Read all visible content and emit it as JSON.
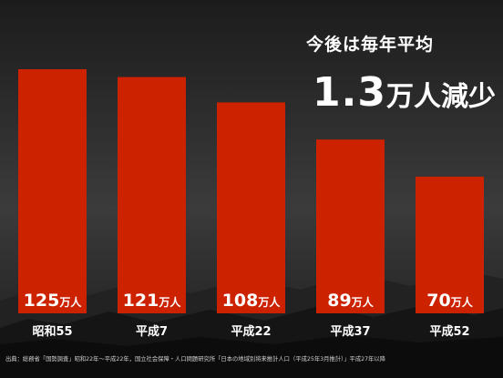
{
  "headline": {
    "line1": "今後は毎年平均",
    "big_number": "1.3",
    "big_unit": "万人減少"
  },
  "chart_data": {
    "type": "bar",
    "categories": [
      "昭和55",
      "平成7",
      "平成22",
      "平成37",
      "平成52"
    ],
    "values": [
      125,
      121,
      108,
      89,
      70
    ],
    "value_labels": [
      "125",
      "121",
      "108",
      "89",
      "70"
    ],
    "unit": "万人",
    "bar_color": "#cc2200",
    "label_color": "#ffffff"
  },
  "source": "出典：総務省「国勢調査」昭和22年〜平成22年，国立社会保障・人口問題研究所「日本の地域別将来推計人口（平成25年3月推計）」平成27年以降"
}
